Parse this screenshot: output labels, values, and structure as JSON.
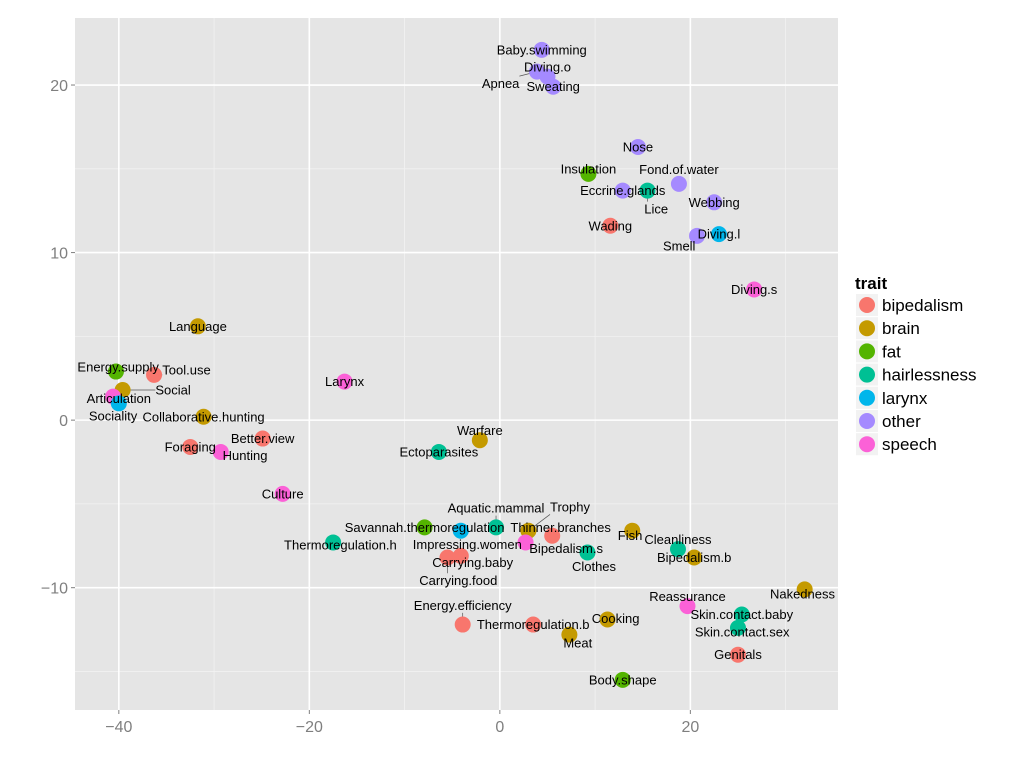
{
  "chart_data": {
    "type": "scatter",
    "title": "",
    "xlabel": "",
    "ylabel": "",
    "xlim": [
      -44.6,
      35.5
    ],
    "ylim": [
      -17.3,
      24.0
    ],
    "xticks": [
      -40,
      -20,
      0,
      20
    ],
    "yticks": [
      -10,
      0,
      10,
      20
    ],
    "grid": true,
    "legend": {
      "title": "trait",
      "placement": "right",
      "entries": [
        "bipedalism",
        "brain",
        "fat",
        "hairlessness",
        "larynx",
        "other",
        "speech"
      ]
    },
    "colors": {
      "bipedalism": "#F8766D",
      "brain": "#C49A00",
      "fat": "#53B400",
      "hairlessness": "#00C094",
      "larynx": "#00B6EB",
      "other": "#A58AFF",
      "speech": "#FB61D7"
    },
    "points": [
      {
        "label": "Baby.swimming",
        "trait": "other",
        "x": 4.4,
        "y": 22.1
      },
      {
        "label": "Apnea",
        "trait": "other",
        "x": 3.9,
        "y": 20.8
      },
      {
        "label": "Diving.o",
        "trait": "other",
        "x": 5.0,
        "y": 20.5
      },
      {
        "label": "Sweating",
        "trait": "other",
        "x": 5.6,
        "y": 19.9
      },
      {
        "label": "Nose",
        "trait": "other",
        "x": 14.5,
        "y": 16.3
      },
      {
        "label": "Insulation",
        "trait": "fat",
        "x": 9.3,
        "y": 14.7
      },
      {
        "label": "Eccrine.glands",
        "trait": "other",
        "x": 12.9,
        "y": 13.7
      },
      {
        "label": "Lice",
        "trait": "hairlessness",
        "x": 15.5,
        "y": 13.7
      },
      {
        "label": "Fond.of.water",
        "trait": "other",
        "x": 18.8,
        "y": 14.1
      },
      {
        "label": "Webbing",
        "trait": "other",
        "x": 22.5,
        "y": 13.0
      },
      {
        "label": "Wading",
        "trait": "bipedalism",
        "x": 11.6,
        "y": 11.6
      },
      {
        "label": "Smell",
        "trait": "other",
        "x": 20.7,
        "y": 11.0
      },
      {
        "label": "Diving.l",
        "trait": "larynx",
        "x": 23.0,
        "y": 11.1
      },
      {
        "label": "Diving.s",
        "trait": "speech",
        "x": 26.7,
        "y": 7.8
      },
      {
        "label": "Language",
        "trait": "brain",
        "x": -31.7,
        "y": 5.6
      },
      {
        "label": "Energy.supply",
        "trait": "fat",
        "x": -40.3,
        "y": 2.9
      },
      {
        "label": "Tool.use",
        "trait": "bipedalism",
        "x": -36.3,
        "y": 2.7
      },
      {
        "label": "Social",
        "trait": "brain",
        "x": -39.6,
        "y": 1.8
      },
      {
        "label": "Sociality",
        "trait": "speech",
        "x": -40.6,
        "y": 1.4
      },
      {
        "label": "Articulation",
        "trait": "larynx",
        "x": -40.0,
        "y": 1.0
      },
      {
        "label": "Larynx",
        "trait": "speech",
        "x": -16.3,
        "y": 2.3
      },
      {
        "label": "Collaborative.hunting",
        "trait": "brain",
        "x": -31.1,
        "y": 0.2
      },
      {
        "label": "Better.view",
        "trait": "bipedalism",
        "x": -24.9,
        "y": -1.1
      },
      {
        "label": "Foraging",
        "trait": "bipedalism",
        "x": -32.5,
        "y": -1.6
      },
      {
        "label": "Hunting",
        "trait": "speech",
        "x": -29.3,
        "y": -1.9
      },
      {
        "label": "Warfare",
        "trait": "brain",
        "x": -2.1,
        "y": -1.2
      },
      {
        "label": "Ectoparasites",
        "trait": "hairlessness",
        "x": -6.4,
        "y": -1.9
      },
      {
        "label": "Culture",
        "trait": "speech",
        "x": -22.8,
        "y": -4.4
      },
      {
        "label": "Savannah.thermoregulation",
        "trait": "fat",
        "x": -7.9,
        "y": -6.4
      },
      {
        "label": "Impressing.women",
        "trait": "larynx",
        "x": -4.1,
        "y": -6.6
      },
      {
        "label": "Aquatic.mammal",
        "trait": "hairlessness",
        "x": -0.4,
        "y": -6.4
      },
      {
        "label": "Trophy",
        "trait": "brain",
        "x": 3.0,
        "y": -6.6
      },
      {
        "label": "Thinner.branches",
        "trait": "bipedalism",
        "x": 5.5,
        "y": -6.9
      },
      {
        "label": "Bipedalism.s",
        "trait": "speech",
        "x": 2.7,
        "y": -7.3
      },
      {
        "label": "Thermoregulation.h",
        "trait": "hairlessness",
        "x": -17.5,
        "y": -7.3
      },
      {
        "label": "Carrying.food",
        "trait": "bipedalism",
        "x": -5.5,
        "y": -8.2
      },
      {
        "label": "Carrying.baby",
        "trait": "bipedalism",
        "x": -4.1,
        "y": -8.1
      },
      {
        "label": "Clothes",
        "trait": "hairlessness",
        "x": 9.2,
        "y": -7.9
      },
      {
        "label": "Fish",
        "trait": "brain",
        "x": 13.9,
        "y": -6.6
      },
      {
        "label": "Cleanliness",
        "trait": "hairlessness",
        "x": 18.7,
        "y": -7.7
      },
      {
        "label": "Bipedalism.b",
        "trait": "brain",
        "x": 20.4,
        "y": -8.2
      },
      {
        "label": "Nakedness",
        "trait": "brain",
        "x": 32.0,
        "y": -10.1
      },
      {
        "label": "Reassurance",
        "trait": "speech",
        "x": 19.7,
        "y": -11.1
      },
      {
        "label": "Skin.contact.baby",
        "trait": "hairlessness",
        "x": 25.4,
        "y": -11.6
      },
      {
        "label": "Skin.contact.sex",
        "trait": "hairlessness",
        "x": 25.0,
        "y": -12.4
      },
      {
        "label": "Energy.efficiency",
        "trait": "bipedalism",
        "x": -3.9,
        "y": -12.2
      },
      {
        "label": "Thermoregulation.b",
        "trait": "bipedalism",
        "x": 3.5,
        "y": -12.2
      },
      {
        "label": "Cooking",
        "trait": "brain",
        "x": 11.3,
        "y": -11.9
      },
      {
        "label": "Meat",
        "trait": "brain",
        "x": 7.3,
        "y": -12.8
      },
      {
        "label": "Genitals",
        "trait": "bipedalism",
        "x": 25.0,
        "y": -14.0
      },
      {
        "label": "Body.shape",
        "trait": "fat",
        "x": 12.9,
        "y": -15.5
      }
    ]
  }
}
